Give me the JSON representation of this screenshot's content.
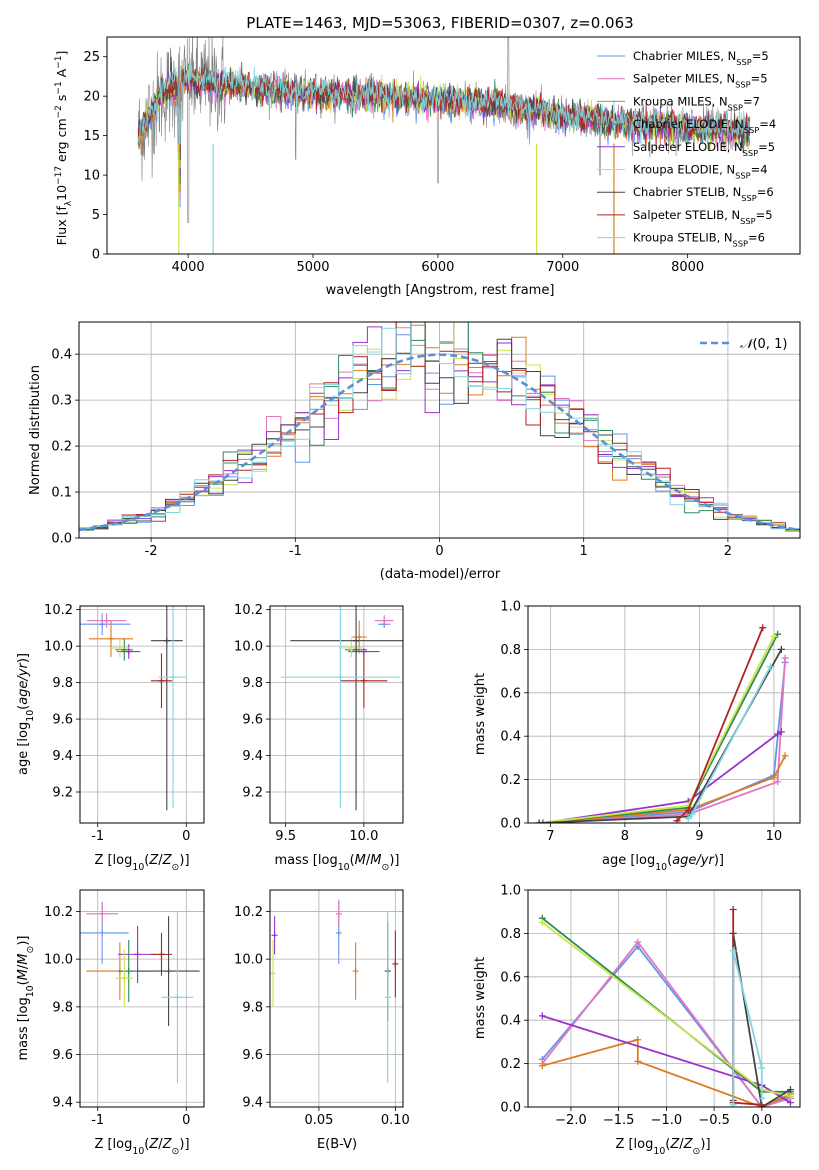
{
  "chart_data": [
    {
      "id": "spectrum",
      "type": "line",
      "title": "PLATE=1463, MJD=53063, FIBERID=0307, z=0.063",
      "xlabel": "wavelength [Angstrom, rest frame]",
      "ylabel": "Flux [f_λ10^-17 erg cm^-2 s^-1 A^-1]",
      "xlim": [
        3350,
        8900
      ],
      "ylim": [
        0,
        27.5
      ],
      "xticks": [
        4000,
        5000,
        6000,
        7000,
        8000
      ],
      "yticks": [
        0,
        5,
        10,
        15,
        20,
        25
      ],
      "grid": false,
      "legend_position": "top-right",
      "series": [
        {
          "name": "Chabrier MILES, N_SSP=5",
          "color": "#6495ed"
        },
        {
          "name": "Salpeter MILES, N_SSP=5",
          "color": "#e377c2"
        },
        {
          "name": "Kroupa MILES, N_SSP=7",
          "color": "#e07b20"
        },
        {
          "name": "Chabrier ELODIE, N_SSP=4",
          "color": "#2e8b57"
        },
        {
          "name": "Salpeter ELODIE, N_SSP=5",
          "color": "#9932cc"
        },
        {
          "name": "Kroupa ELODIE, N_SSP=4",
          "color": "#c8e64c"
        },
        {
          "name": "Chabrier STELIB, N_SSP=6",
          "color": "#444444"
        },
        {
          "name": "Salpeter STELIB, N_SSP=5",
          "color": "#b22222"
        },
        {
          "name": "Kroupa STELIB, N_SSP=6",
          "color": "#7fd6e0"
        }
      ],
      "data_color": "#808080",
      "approx_continuum": [
        [
          3600,
          15
        ],
        [
          3800,
          20.5
        ],
        [
          4000,
          22
        ],
        [
          4300,
          21.5
        ],
        [
          4800,
          20.5
        ],
        [
          5500,
          20
        ],
        [
          6000,
          19.5
        ],
        [
          6500,
          19
        ],
        [
          7000,
          17.5
        ],
        [
          7500,
          16.5
        ],
        [
          8000,
          16
        ],
        [
          8500,
          15.5
        ]
      ]
    },
    {
      "id": "residuals",
      "type": "histogram",
      "xlabel": "(data-model)/error",
      "ylabel": "Normed distribution",
      "xlim": [
        -2.5,
        2.5
      ],
      "ylim": [
        0,
        0.47
      ],
      "xticks": [
        -2,
        -1,
        0,
        1,
        2
      ],
      "yticks": [
        0.0,
        0.1,
        0.2,
        0.3,
        0.4
      ],
      "grid": true,
      "legend_position": "top-right",
      "reference_curve": {
        "name": "N(0,1)",
        "color": "#5b8fd9"
      },
      "bin_width": 0.1
    },
    {
      "id": "age-vs-Z",
      "type": "errorbar",
      "xlabel": "Z [log10(Z/Z⊙)]",
      "ylabel": "age [log10(age/yr)]",
      "xlim": [
        -1.2,
        0.2
      ],
      "ylim": [
        9.03,
        10.22
      ],
      "xticks": [
        -1,
        0
      ],
      "yticks": [
        9.2,
        9.4,
        9.6,
        9.8,
        10.0,
        10.2
      ],
      "grid": true,
      "points": [
        {
          "series": "Chabrier MILES",
          "x": -0.95,
          "y": 10.12,
          "xerr": 0.32,
          "yerr": 0.06
        },
        {
          "series": "Salpeter MILES",
          "x": -0.9,
          "y": 10.14,
          "xerr": 0.22,
          "yerr": 0.04
        },
        {
          "series": "Kroupa MILES",
          "x": -0.85,
          "y": 10.04,
          "xerr": 0.25,
          "yerr": 0.1
        },
        {
          "series": "Chabrier ELODIE",
          "x": -0.7,
          "y": 9.98,
          "xerr": 0.1,
          "yerr": 0.06
        },
        {
          "series": "Salpeter ELODIE",
          "x": -0.65,
          "y": 9.97,
          "xerr": 0.13,
          "yerr": 0.04
        },
        {
          "series": "Kroupa ELODIE",
          "x": -0.75,
          "y": 9.99,
          "xerr": 0.12,
          "yerr": 0.05
        },
        {
          "series": "Chabrier STELIB",
          "x": -0.22,
          "y": 10.03,
          "xerr": 0.18,
          "yerr": 0.93
        },
        {
          "series": "Salpeter STELIB",
          "x": -0.28,
          "y": 9.81,
          "xerr": 0.12,
          "yerr": 0.15
        },
        {
          "series": "Kroupa STELIB",
          "x": -0.15,
          "y": 9.83,
          "xerr": 0.16,
          "yerr": 0.72
        }
      ]
    },
    {
      "id": "age-vs-mass",
      "type": "errorbar",
      "xlabel": "mass [log10(M/M⊙)]",
      "ylabel": "",
      "xlim": [
        9.4,
        10.25
      ],
      "ylim": [
        9.03,
        10.22
      ],
      "xticks": [
        9.5,
        10.0
      ],
      "yticks": [
        9.2,
        9.4,
        9.6,
        9.8,
        10.0,
        10.2
      ],
      "grid": true,
      "points": [
        {
          "series": "Chabrier MILES",
          "x": 10.13,
          "y": 10.12,
          "xerr": 0.04,
          "yerr": 0.02
        },
        {
          "series": "Salpeter MILES",
          "x": 10.13,
          "y": 10.14,
          "xerr": 0.06,
          "yerr": 0.03
        },
        {
          "series": "Kroupa MILES",
          "x": 9.97,
          "y": 10.05,
          "xerr": 0.05,
          "yerr": 0.09
        },
        {
          "series": "Chabrier ELODIE",
          "x": 9.95,
          "y": 9.98,
          "xerr": 0.07,
          "yerr": 0.03
        },
        {
          "series": "Salpeter ELODIE",
          "x": 10.0,
          "y": 9.97,
          "xerr": 0.1,
          "yerr": 0.02
        },
        {
          "series": "Kroupa ELODIE",
          "x": 9.92,
          "y": 9.99,
          "xerr": 0.08,
          "yerr": 0.05
        },
        {
          "series": "Chabrier STELIB",
          "x": 9.95,
          "y": 10.03,
          "xerr": 0.42,
          "yerr": 0.93
        },
        {
          "series": "Salpeter STELIB",
          "x": 10.0,
          "y": 9.81,
          "xerr": 0.15,
          "yerr": 0.15
        },
        {
          "series": "Kroupa STELIB",
          "x": 9.85,
          "y": 9.83,
          "xerr": 0.38,
          "yerr": 0.72
        }
      ]
    },
    {
      "id": "massweight-vs-age",
      "type": "line",
      "xlabel": "age [log10(age/yr)]",
      "ylabel": "mass weight",
      "xlim": [
        6.7,
        10.35
      ],
      "ylim": [
        0,
        1.0
      ],
      "xticks": [
        7,
        8,
        9,
        10
      ],
      "yticks": [
        0.0,
        0.2,
        0.4,
        0.6,
        0.8,
        1.0
      ],
      "grid": true,
      "series": [
        {
          "name": "Chabrier MILES",
          "x": [
            6.85,
            8.85,
            10.0,
            10.15
          ],
          "y": [
            0.0,
            0.05,
            0.22,
            0.74
          ]
        },
        {
          "name": "Salpeter MILES",
          "x": [
            6.9,
            8.85,
            10.05,
            10.15
          ],
          "y": [
            0.0,
            0.04,
            0.19,
            0.76
          ]
        },
        {
          "name": "Kroupa MILES",
          "x": [
            6.85,
            8.85,
            10.0,
            10.15
          ],
          "y": [
            0.0,
            0.06,
            0.21,
            0.31
          ]
        },
        {
          "name": "Chabrier ELODIE",
          "x": [
            6.85,
            8.85,
            10.05
          ],
          "y": [
            0.0,
            0.07,
            0.87
          ]
        },
        {
          "name": "Salpeter ELODIE",
          "x": [
            6.9,
            8.85,
            10.05,
            10.1
          ],
          "y": [
            0.0,
            0.1,
            0.41,
            0.42
          ]
        },
        {
          "name": "Kroupa ELODIE",
          "x": [
            6.85,
            8.85,
            10.0
          ],
          "y": [
            0.0,
            0.08,
            0.86
          ]
        },
        {
          "name": "Chabrier STELIB",
          "x": [
            6.85,
            8.85,
            10.1
          ],
          "y": [
            0.0,
            0.03,
            0.8
          ]
        },
        {
          "name": "Salpeter STELIB",
          "x": [
            8.7,
            8.85,
            9.85
          ],
          "y": [
            0.01,
            0.06,
            0.9
          ]
        },
        {
          "name": "Kroupa STELIB",
          "x": [
            8.85,
            8.9,
            9.95
          ],
          "y": [
            0.02,
            0.04,
            0.72
          ]
        }
      ]
    },
    {
      "id": "mass-vs-Z",
      "type": "errorbar",
      "xlabel": "Z [log10(Z/Z⊙)]",
      "ylabel": "mass [log10(M/M⊙)]",
      "xlim": [
        -1.2,
        0.2
      ],
      "ylim": [
        9.38,
        10.29
      ],
      "xticks": [
        -1,
        0
      ],
      "yticks": [
        9.4,
        9.6,
        9.8,
        10.0,
        10.2
      ],
      "grid": true,
      "points": [
        {
          "series": "Chabrier MILES",
          "x": -0.95,
          "y": 10.11,
          "xerr": 0.3,
          "yerr": 0.13
        },
        {
          "series": "Salpeter MILES",
          "x": -0.95,
          "y": 10.19,
          "xerr": 0.18,
          "yerr": 0.05
        },
        {
          "series": "Kroupa MILES",
          "x": -0.75,
          "y": 9.95,
          "xerr": 0.38,
          "yerr": 0.12
        },
        {
          "series": "Chabrier ELODIE",
          "x": -0.65,
          "y": 9.95,
          "xerr": 0.12,
          "yerr": 0.13
        },
        {
          "series": "Salpeter ELODIE",
          "x": -0.55,
          "y": 10.02,
          "xerr": 0.22,
          "yerr": 0.12
        },
        {
          "series": "Kroupa ELODIE",
          "x": -0.7,
          "y": 9.92,
          "xerr": 0.1,
          "yerr": 0.12
        },
        {
          "series": "Chabrier STELIB",
          "x": -0.2,
          "y": 9.95,
          "xerr": 0.35,
          "yerr": 0.23
        },
        {
          "series": "Salpeter STELIB",
          "x": -0.28,
          "y": 10.02,
          "xerr": 0.12,
          "yerr": 0.09
        },
        {
          "series": "Kroupa STELIB",
          "x": -0.1,
          "y": 9.84,
          "xerr": 0.18,
          "yerr": 0.36
        }
      ]
    },
    {
      "id": "mass-vs-EBV",
      "type": "errorbar",
      "xlabel": "E(B-V)",
      "ylabel": "",
      "xlim": [
        0.018,
        0.105
      ],
      "ylim": [
        9.38,
        10.29
      ],
      "xticks": [
        0.05,
        0.1
      ],
      "yticks": [
        9.4,
        9.6,
        9.8,
        10.0,
        10.2
      ],
      "grid": true,
      "points": [
        {
          "series": "Chabrier MILES",
          "x": 0.063,
          "y": 10.11,
          "yerr": 0.13
        },
        {
          "series": "Salpeter MILES",
          "x": 0.063,
          "y": 10.19,
          "yerr": 0.06
        },
        {
          "series": "Kroupa MILES",
          "x": 0.074,
          "y": 9.95,
          "yerr": 0.12
        },
        {
          "series": "Salpeter ELODIE",
          "x": 0.021,
          "y": 10.1,
          "yerr": 0.08
        },
        {
          "series": "Kroupa ELODIE",
          "x": 0.02,
          "y": 9.94,
          "yerr": 0.14
        },
        {
          "series": "Chabrier STELIB",
          "x": 0.095,
          "y": 9.95,
          "yerr": 0.21
        },
        {
          "series": "Salpeter STELIB",
          "x": 0.1,
          "y": 9.98,
          "yerr": 0.14
        },
        {
          "series": "Kroupa STELIB",
          "x": 0.095,
          "y": 9.84,
          "yerr": 0.36
        }
      ]
    },
    {
      "id": "massweight-vs-Z",
      "type": "line",
      "xlabel": "Z [log10(Z/Z⊙)]",
      "ylabel": "mass weight",
      "xlim": [
        -2.45,
        0.4
      ],
      "ylim": [
        0,
        1.0
      ],
      "xticks": [
        -2.0,
        -1.5,
        -1.0,
        -0.5,
        0.0
      ],
      "yticks": [
        0.0,
        0.2,
        0.4,
        0.6,
        0.8,
        1.0
      ],
      "grid": true,
      "series": [
        {
          "name": "Chabrier MILES",
          "x": [
            -2.3,
            -1.3,
            0.0,
            0.3
          ],
          "y": [
            0.22,
            0.74,
            0.0,
            0.05
          ]
        },
        {
          "name": "Salpeter MILES",
          "x": [
            -2.3,
            -1.3,
            0.0,
            0.3
          ],
          "y": [
            0.2,
            0.76,
            0.0,
            0.04
          ]
        },
        {
          "name": "Kroupa MILES",
          "x": [
            -2.3,
            -1.3,
            -1.3,
            0.0,
            0.3
          ],
          "y": [
            0.19,
            0.31,
            0.21,
            0.0,
            0.06
          ]
        },
        {
          "name": "Chabrier ELODIE",
          "x": [
            -2.3,
            0.0,
            0.3
          ],
          "y": [
            0.87,
            0.07,
            0.07
          ]
        },
        {
          "name": "Salpeter ELODIE",
          "x": [
            -2.3,
            0.0,
            0.3
          ],
          "y": [
            0.42,
            0.1,
            0.02
          ]
        },
        {
          "name": "Kroupa ELODIE",
          "x": [
            -2.3,
            0.0,
            0.3
          ],
          "y": [
            0.85,
            0.08,
            0.05
          ]
        },
        {
          "name": "Chabrier STELIB",
          "x": [
            -0.3,
            -0.3,
            0.0,
            0.3
          ],
          "y": [
            0.03,
            0.8,
            0.0,
            0.08
          ]
        },
        {
          "name": "Salpeter STELIB",
          "x": [
            -0.3,
            -0.3,
            0.0
          ],
          "y": [
            0.91,
            0.02,
            0.01
          ]
        },
        {
          "name": "Kroupa STELIB",
          "x": [
            -0.3,
            -0.3,
            0.0,
            0.0
          ],
          "y": [
            0.01,
            0.72,
            0.18,
            0.04
          ]
        }
      ]
    }
  ]
}
